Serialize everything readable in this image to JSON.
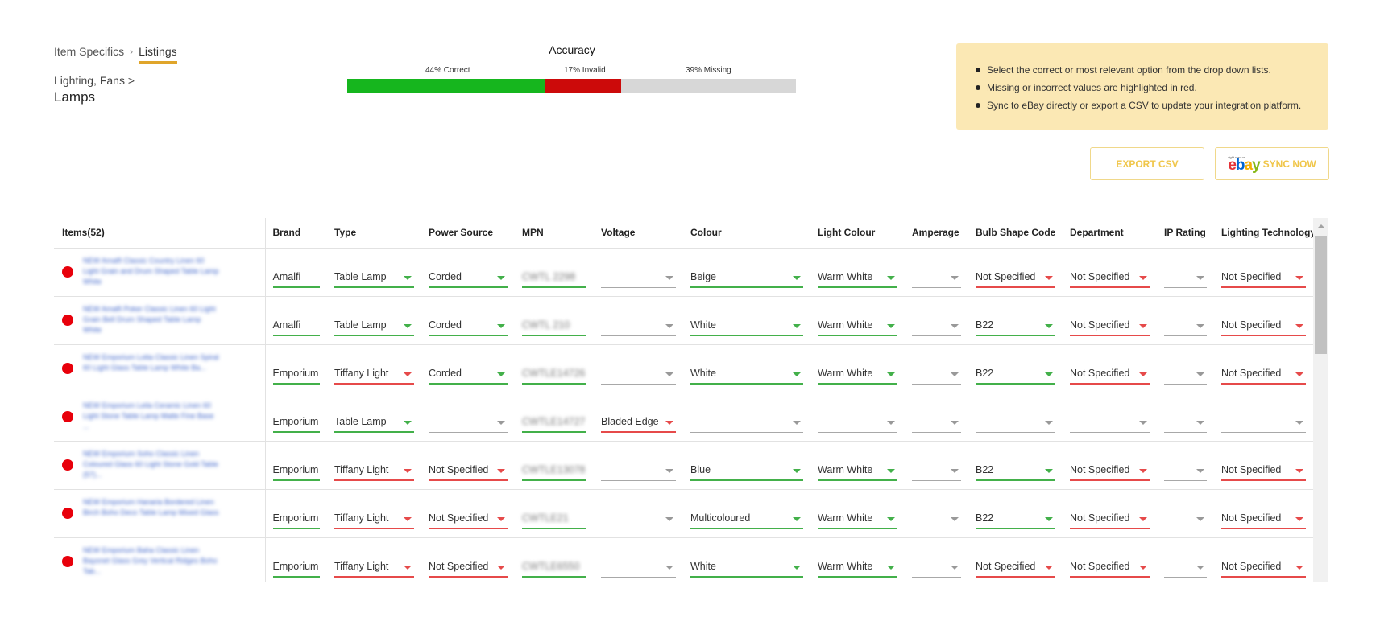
{
  "breadcrumb": {
    "parent": "Item Specifics",
    "separator": "›",
    "current": "Listings"
  },
  "category": {
    "path": "Lighting, Fans >",
    "name": "Lamps"
  },
  "accuracy": {
    "title": "Accuracy",
    "correct_label": "44% Correct",
    "invalid_label": "17% Invalid",
    "missing_label": "39% Missing",
    "correct_pct": 44,
    "invalid_pct": 17,
    "missing_pct": 39,
    "colors": {
      "correct": "#16b61e",
      "invalid": "#cc0a0a",
      "missing": "#d7d7d7"
    }
  },
  "info": {
    "bullets": [
      "Select the correct or most relevant option from the drop down lists.",
      "Missing or incorrect values are highlighted in red.",
      "Sync to eBay directly or export a CSV to update your integration platform."
    ]
  },
  "buttons": {
    "export": "EXPORT CSV",
    "sync": "SYNC NOW",
    "ebay_tagline": "right now on"
  },
  "table": {
    "columns": [
      "Items(52)",
      "Brand",
      "Type",
      "Power Source",
      "MPN",
      "Voltage",
      "Colour",
      "Light Colour",
      "Amperage",
      "Bulb Shape Code",
      "Department",
      "IP Rating",
      "Lighting Technology"
    ],
    "rows": [
      {
        "title": "NEW Amalfi Classic Country Linen 60 Light Grain and Drum Shaped Table Lamp White",
        "brand": "Amalfi",
        "type": [
          "Table Lamp",
          "valid"
        ],
        "power": [
          "Corded",
          "valid"
        ],
        "mpn": "CWTL 2298",
        "voltage": [
          "",
          "empty"
        ],
        "colour": [
          "Beige",
          "valid"
        ],
        "light": [
          "Warm White",
          "valid"
        ],
        "amperage": [
          "",
          "empty"
        ],
        "bulb": [
          "Not Specified",
          "invalid"
        ],
        "dept": [
          "Not Specified",
          "invalid"
        ],
        "ip": [
          "",
          "empty"
        ],
        "tech": [
          "Not Specified",
          "invalid"
        ]
      },
      {
        "title": "NEW Amalfi Poker Classic Linen 60 Light Grain Bell Drum Shaped Table Lamp White",
        "brand": "Amalfi",
        "type": [
          "Table Lamp",
          "valid"
        ],
        "power": [
          "Corded",
          "valid"
        ],
        "mpn": "CWTL 210",
        "voltage": [
          "",
          "empty"
        ],
        "colour": [
          "White",
          "valid"
        ],
        "light": [
          "Warm White",
          "valid"
        ],
        "amperage": [
          "",
          "empty"
        ],
        "bulb": [
          "B22",
          "valid"
        ],
        "dept": [
          "Not Specified",
          "invalid"
        ],
        "ip": [
          "",
          "empty"
        ],
        "tech": [
          "Not Specified",
          "invalid"
        ]
      },
      {
        "title": "NEW Emporium Lotta Classic Linen Spiral 60 Light Glass Table Lamp White Ba...",
        "brand": "Emporium",
        "type": [
          "Tiffany Light",
          "invalid"
        ],
        "power": [
          "Corded",
          "valid"
        ],
        "mpn": "CWTLE14726",
        "voltage": [
          "",
          "empty"
        ],
        "colour": [
          "White",
          "valid"
        ],
        "light": [
          "Warm White",
          "valid"
        ],
        "amperage": [
          "",
          "empty"
        ],
        "bulb": [
          "B22",
          "valid"
        ],
        "dept": [
          "Not Specified",
          "invalid"
        ],
        "ip": [
          "",
          "empty"
        ],
        "tech": [
          "Not Specified",
          "invalid"
        ]
      },
      {
        "title": "NEW Emporium Leila Ceramic Linen 60 Light Stone Table Lamp Matte Fine Base ...",
        "brand": "Emporium",
        "type": [
          "Table Lamp",
          "valid"
        ],
        "power": [
          "",
          "empty"
        ],
        "mpn": "CWTLE14727",
        "voltage": [
          "Bladed Edge",
          "invalid"
        ],
        "colour": [
          "",
          "empty"
        ],
        "light": [
          "",
          "empty"
        ],
        "amperage": [
          "",
          "empty"
        ],
        "bulb": [
          "",
          "empty"
        ],
        "dept": [
          "",
          "empty"
        ],
        "ip": [
          "",
          "empty"
        ],
        "tech": [
          "",
          "empty"
        ]
      },
      {
        "title": "NEW Emporium Soho Classic Linen Coloured Glass 60 Light Stone Gold Table (57)...",
        "brand": "Emporium",
        "type": [
          "Tiffany Light",
          "invalid"
        ],
        "power": [
          "Not Specified",
          "invalid"
        ],
        "mpn": "CWTLE13078",
        "voltage": [
          "",
          "empty"
        ],
        "colour": [
          "Blue",
          "valid"
        ],
        "light": [
          "Warm White",
          "valid"
        ],
        "amperage": [
          "",
          "empty"
        ],
        "bulb": [
          "B22",
          "valid"
        ],
        "dept": [
          "Not Specified",
          "invalid"
        ],
        "ip": [
          "",
          "empty"
        ],
        "tech": [
          "Not Specified",
          "invalid"
        ]
      },
      {
        "title": "NEW Emporium Hanaria Bordered Linen Birch Boho Deco Table Lamp Mixed Glass",
        "brand": "Emporium",
        "type": [
          "Tiffany Light",
          "invalid"
        ],
        "power": [
          "Not Specified",
          "invalid"
        ],
        "mpn": "CWTLE21",
        "voltage": [
          "",
          "empty"
        ],
        "colour": [
          "Multicoloured",
          "valid"
        ],
        "light": [
          "Warm White",
          "valid"
        ],
        "amperage": [
          "",
          "empty"
        ],
        "bulb": [
          "B22",
          "valid"
        ],
        "dept": [
          "Not Specified",
          "invalid"
        ],
        "ip": [
          "",
          "empty"
        ],
        "tech": [
          "Not Specified",
          "invalid"
        ]
      },
      {
        "title": "NEW Emporium Baha Classic Linen Bayonet Glass Grey Vertical Ridges Boho Tab...",
        "brand": "Emporium",
        "type": [
          "Tiffany Light",
          "invalid"
        ],
        "power": [
          "Not Specified",
          "invalid"
        ],
        "mpn": "CWTLE6550",
        "voltage": [
          "",
          "empty"
        ],
        "colour": [
          "White",
          "valid"
        ],
        "light": [
          "Warm White",
          "valid"
        ],
        "amperage": [
          "",
          "empty"
        ],
        "bulb": [
          "Not Specified",
          "invalid"
        ],
        "dept": [
          "Not Specified",
          "invalid"
        ],
        "ip": [
          "",
          "empty"
        ],
        "tech": [
          "Not Specified",
          "invalid"
        ]
      }
    ]
  }
}
